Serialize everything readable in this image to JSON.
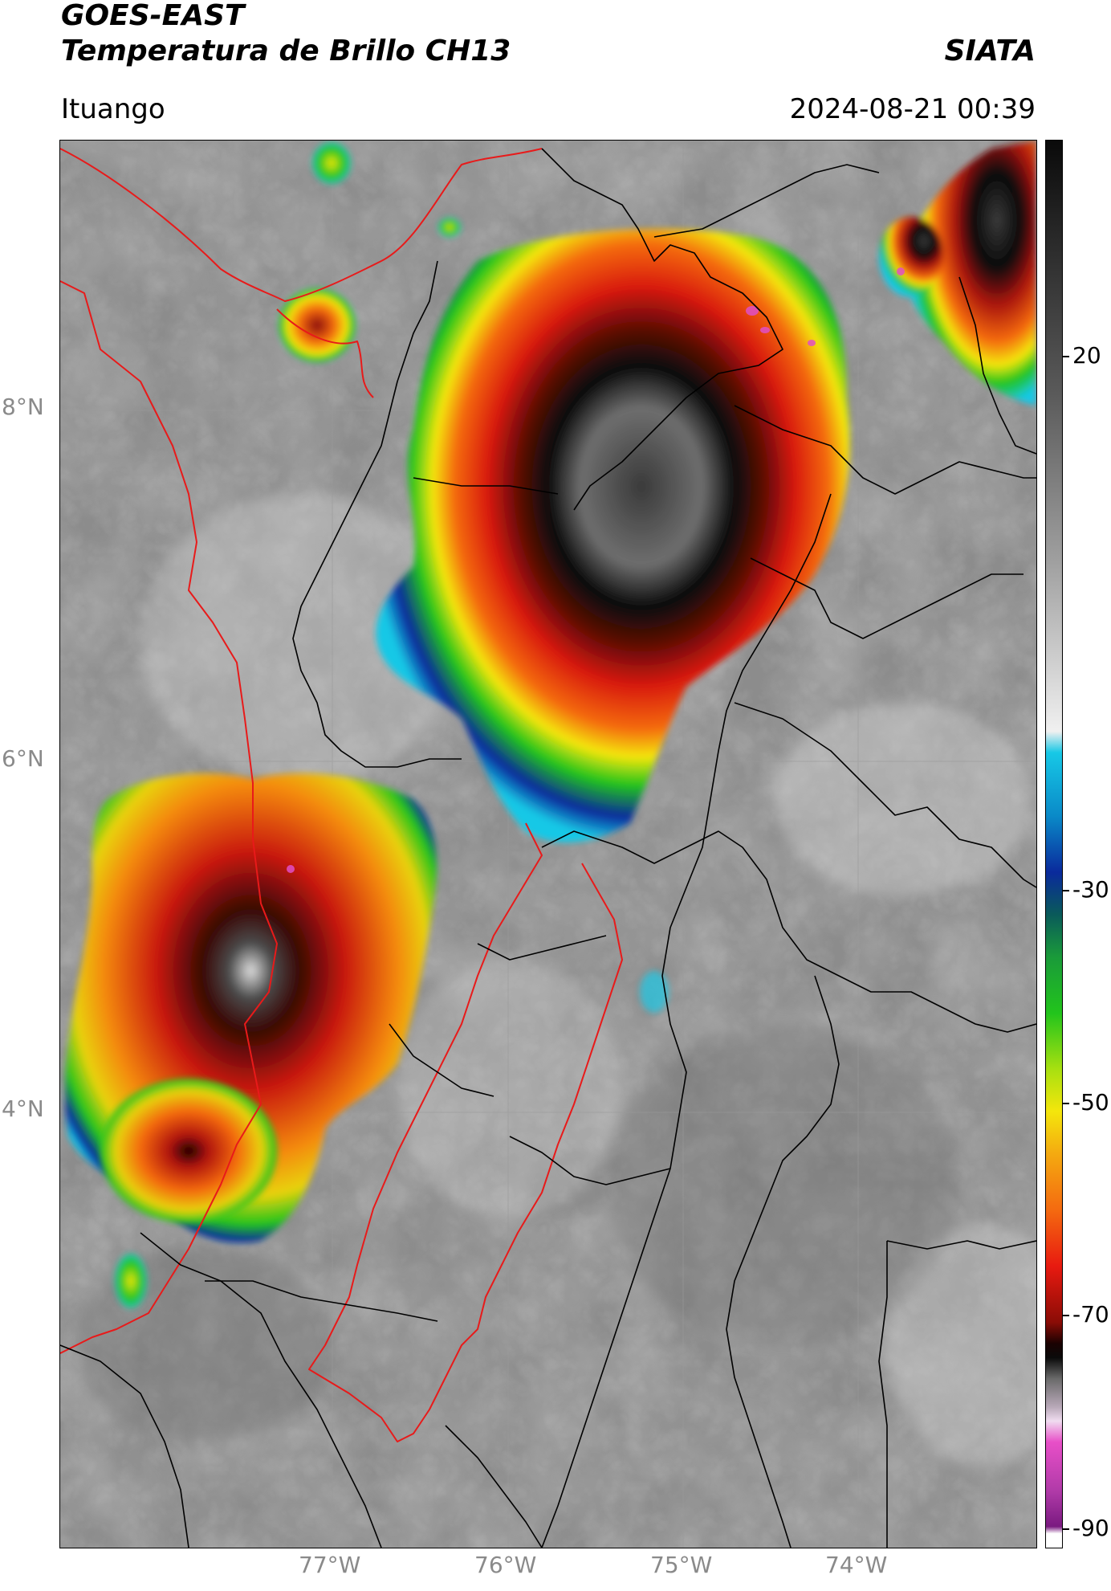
{
  "header": {
    "line1": "GOES-EAST",
    "line2": "Temperatura de Brillo CH13",
    "org": "SIATA",
    "location": "Ituango",
    "datetime": "2024-08-21 00:39"
  },
  "map": {
    "lat_labels": [
      "8°N",
      "6°N",
      "4°N"
    ],
    "lon_labels": [
      "77°W",
      "76°W",
      "75°W",
      "74°W"
    ]
  },
  "colorbar": {
    "tick_labels": [
      "20",
      "-30",
      "-50",
      "-70",
      "-90"
    ],
    "colors": {
      "cyan": "#17c8e6",
      "blue": "#0a2a9c",
      "green": "#22c41c",
      "yellow": "#f4e60c",
      "orange": "#f48a10",
      "red": "#d81a10",
      "darkred": "#5a0804",
      "black": "#0a0a0a",
      "magenta": "#e04fc8",
      "purple": "#8a1c8e"
    }
  }
}
